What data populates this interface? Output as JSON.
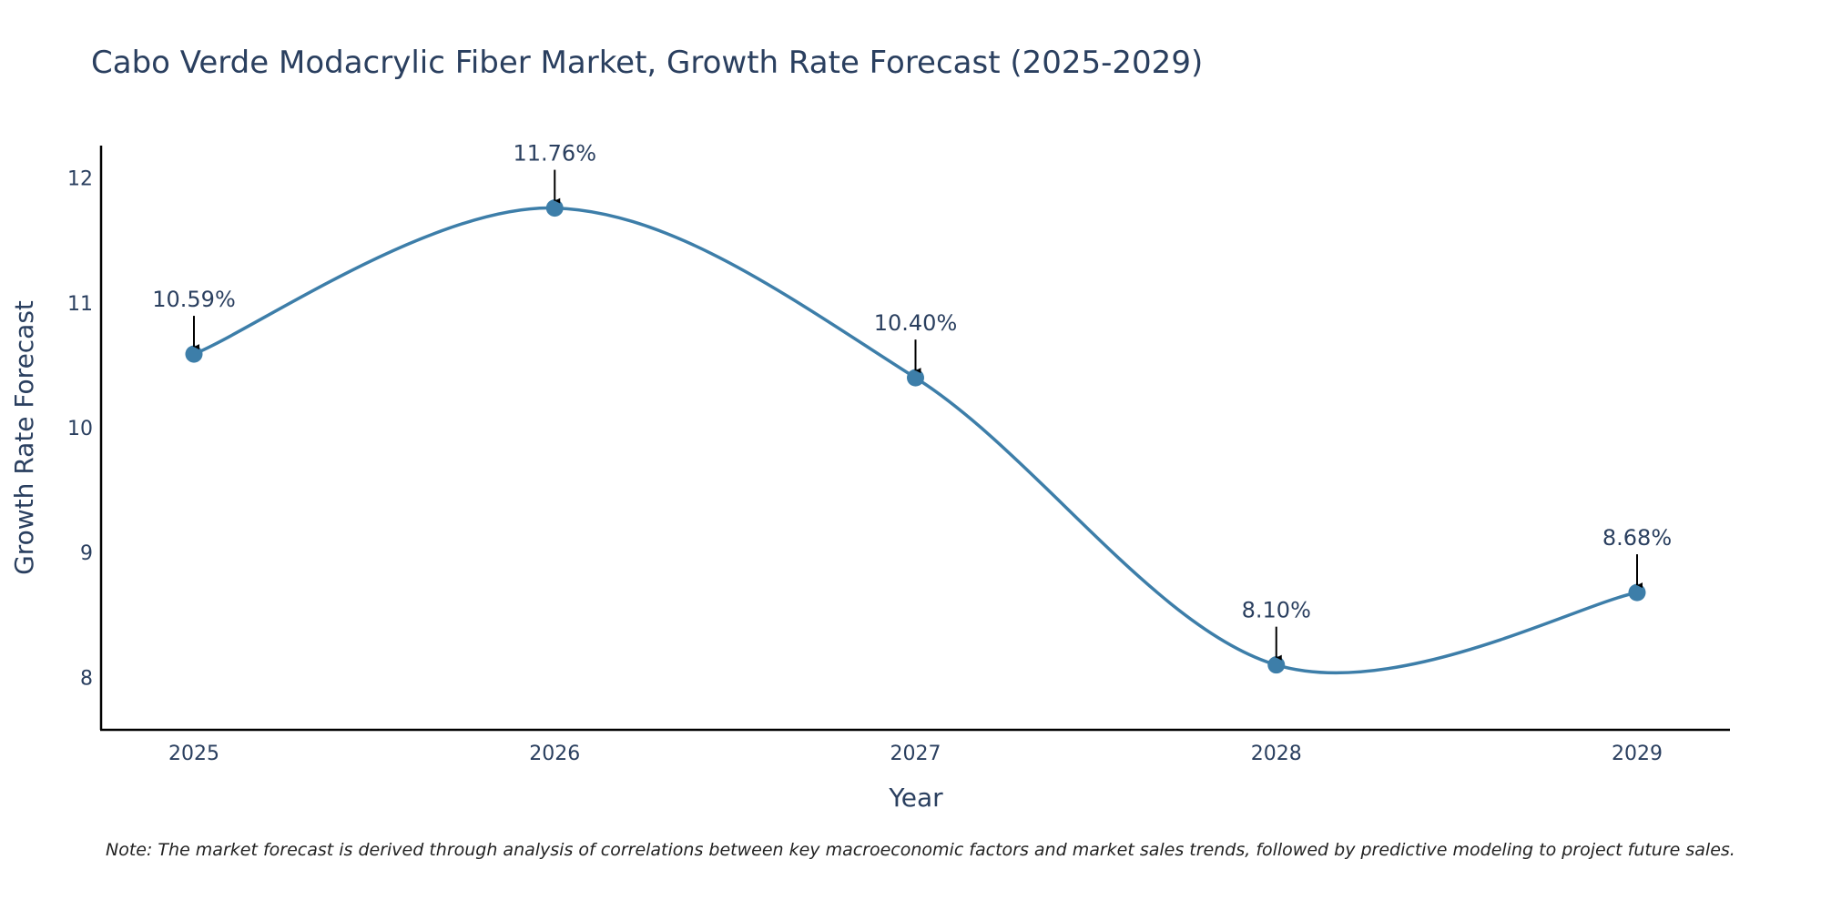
{
  "chart_data": {
    "type": "line",
    "title": "Cabo Verde Modacrylic Fiber Market, Growth Rate Forecast (2025-2029)",
    "xlabel": "Year",
    "ylabel": "Growth Rate Forecast",
    "categories": [
      "2025",
      "2026",
      "2027",
      "2028",
      "2029"
    ],
    "values": [
      10.59,
      11.76,
      10.4,
      8.1,
      8.68
    ],
    "data_labels": [
      "10.59%",
      "11.76%",
      "10.40%",
      "8.10%",
      "8.68%"
    ],
    "yticks": [
      8,
      9,
      10,
      11,
      12
    ],
    "ylim": [
      7.58,
      12.26
    ],
    "grid": false,
    "line_color": "#3d7ea9",
    "note": "Note: The market forecast is derived through analysis of correlations between key macroeconomic factors and market sales trends, followed by predictive modeling to project future sales."
  }
}
